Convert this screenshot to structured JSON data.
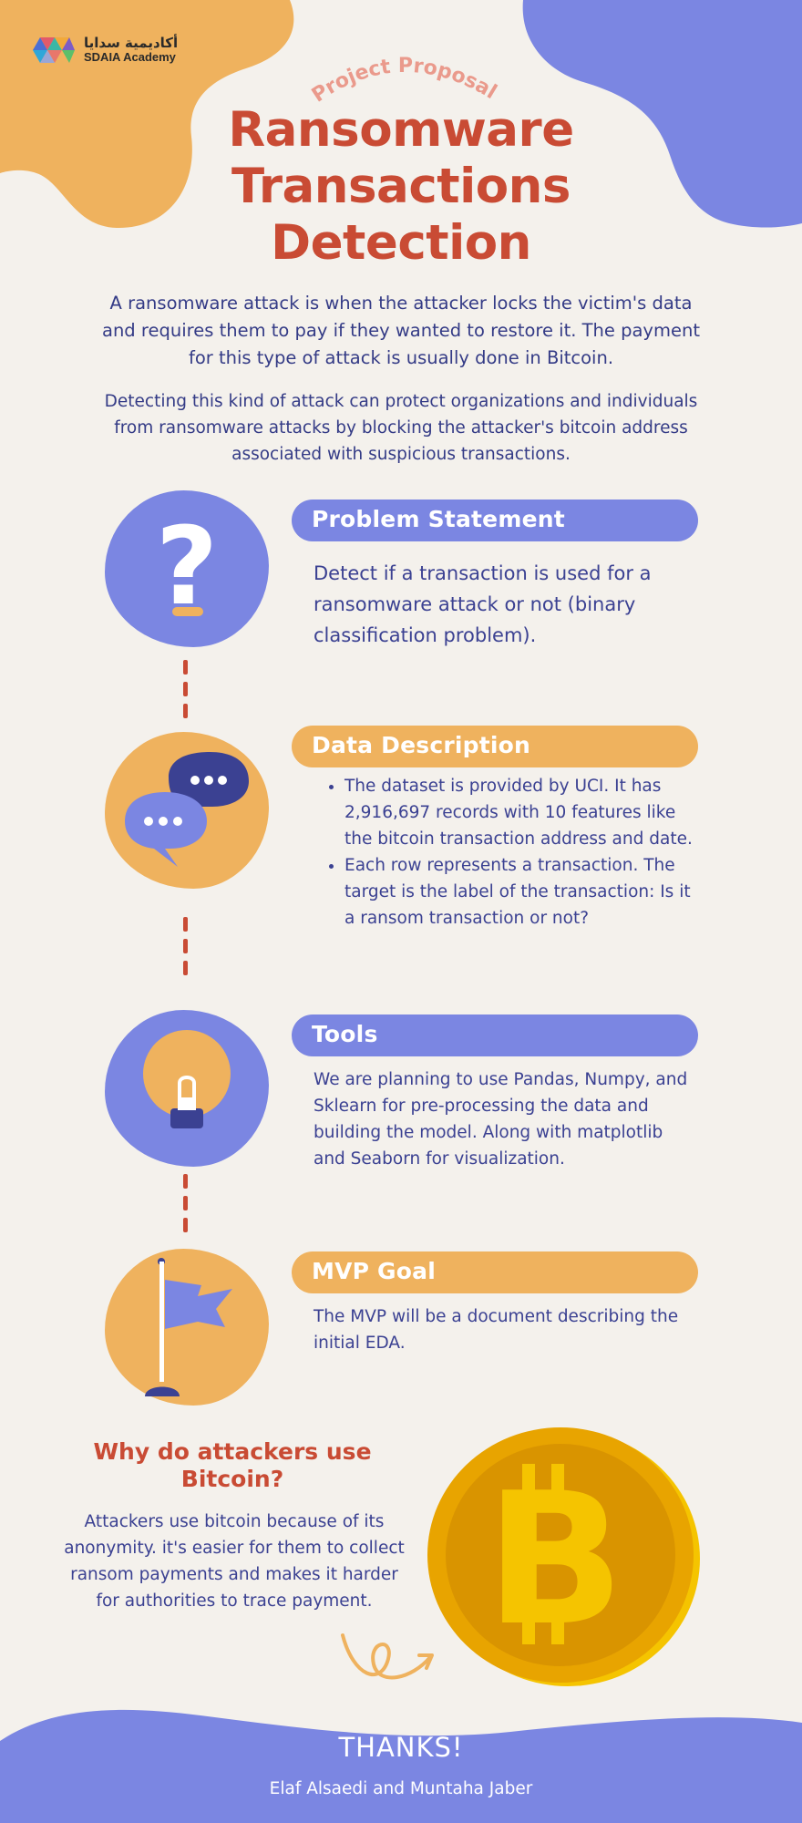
{
  "logo": {
    "arabic": "أكاديمية سدايا",
    "english": "SDAIA Academy"
  },
  "header": {
    "subtitle": "Project Proposal",
    "title_lines": [
      "Ransomware",
      "Transactions",
      "Detection"
    ]
  },
  "intro": {
    "paragraph1": "A ransomware attack is when the attacker locks the victim's data and requires them to pay if they wanted to restore it. The payment for this type of attack is usually done in Bitcoin.",
    "paragraph2": "Detecting this kind of attack can protect organizations and individuals from ransomware attacks by blocking the attacker's bitcoin address associated with suspicious transactions."
  },
  "sections": {
    "problem": {
      "title": "Problem Statement",
      "icon": "question-mark-icon",
      "text": "Detect if a transaction is used for a ransomware attack or not (binary classification problem)."
    },
    "data": {
      "title": "Data Description",
      "icon": "chat-bubbles-icon",
      "bullets": [
        "The dataset is provided by UCI. It has 2,916,697 records with 10 features like the bitcoin transaction address and date.",
        "Each row represents a transaction. The target is the label of the transaction: Is it a ransom transaction or not?"
      ]
    },
    "tools": {
      "title": "Tools",
      "icon": "lightbulb-icon",
      "text": "We are planning to use Pandas, Numpy, and Sklearn for pre-processing the data and building the model. Along with matplotlib and Seaborn for visualization."
    },
    "mvp": {
      "title": "MVP Goal",
      "icon": "flag-icon",
      "text": "The MVP will be a document describing the initial EDA."
    }
  },
  "why": {
    "title": "Why do attackers use Bitcoin?",
    "text": "Attackers use bitcoin because of its anonymity. it's easier for them to collect ransom payments and makes it harder for authorities to trace payment.",
    "icon": "bitcoin-coin-icon"
  },
  "footer": {
    "thanks": "THANKS!",
    "authors": "Elaf Alsaedi and Muntaha Jaber"
  },
  "colors": {
    "background": "#f4f1ec",
    "purple": "#7b86e2",
    "orange": "#efb25e",
    "title_red": "#c94b34",
    "text_navy": "#3b4192",
    "coin_gold": "#f5c400"
  }
}
